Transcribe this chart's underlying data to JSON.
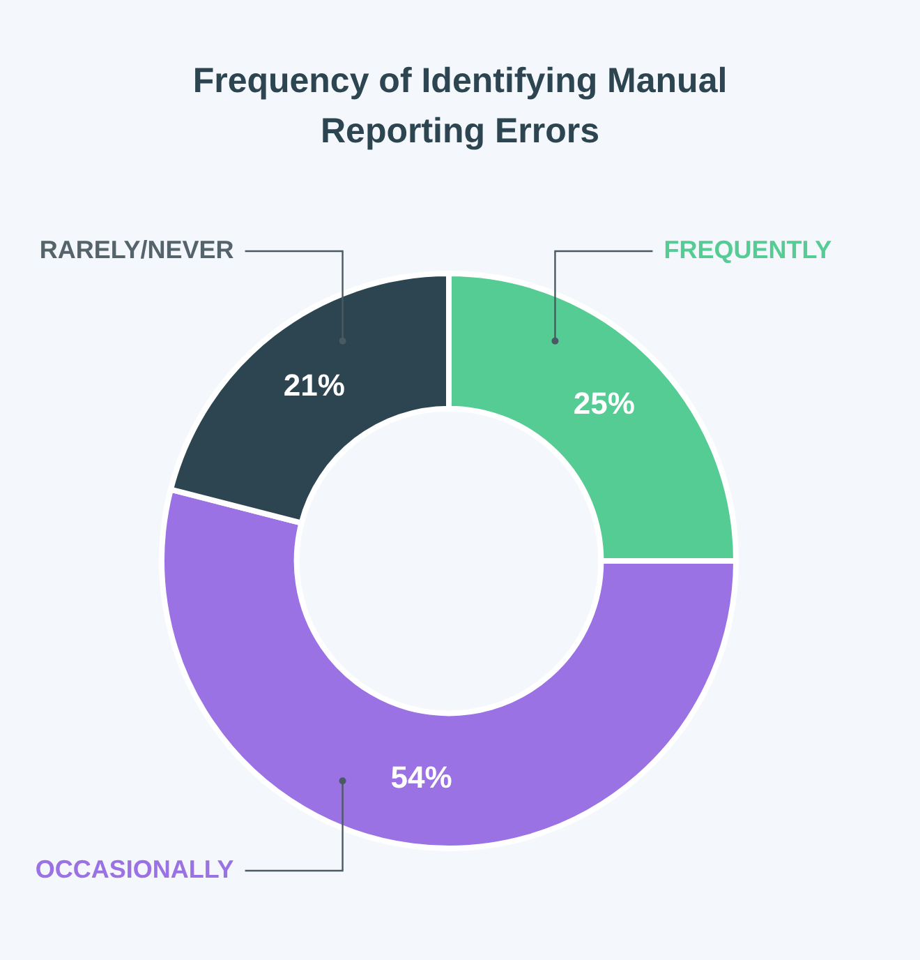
{
  "chart_data": {
    "type": "donut",
    "title": "Frequency of Identifying Manual Reporting Errors",
    "categories": [
      "FREQUENTLY",
      "OCCASIONALLY",
      "RARELY/NEVER"
    ],
    "values": [
      25,
      54,
      21
    ],
    "value_labels": [
      "25%",
      "54%",
      "21%"
    ],
    "colors": [
      "#55cc94",
      "#9b72e4",
      "#2c4550"
    ]
  }
}
